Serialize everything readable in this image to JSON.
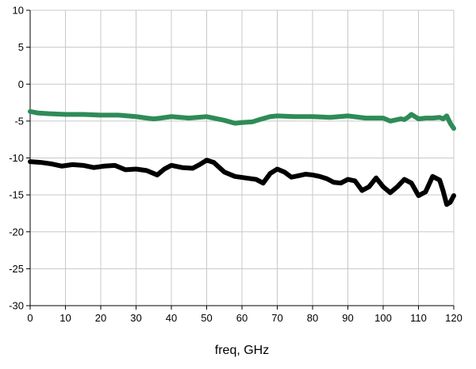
{
  "chart_data": {
    "type": "line",
    "title": "",
    "xlabel": "freq, GHz",
    "ylabel": "",
    "xlim": [
      0,
      120
    ],
    "ylim": [
      -30,
      10
    ],
    "grid": true,
    "x_ticks": [
      "0",
      "10",
      "20",
      "30",
      "40",
      "50",
      "60",
      "70",
      "80",
      "90",
      "100",
      "110",
      "120"
    ],
    "y_ticks": [
      "10",
      "5",
      "0",
      "-5",
      "-10",
      "-15",
      "-20",
      "-25",
      "-30"
    ],
    "series": [
      {
        "name": "green trace",
        "color": "#2e8b57",
        "x": [
          0,
          2,
          5,
          10,
          15,
          20,
          25,
          30,
          33,
          35,
          37,
          40,
          45,
          50,
          55,
          58,
          60,
          63,
          65,
          68,
          70,
          75,
          80,
          85,
          90,
          95,
          100,
          102,
          105,
          106,
          107,
          108,
          109,
          110,
          112,
          114,
          116,
          117,
          118,
          119,
          120
        ],
        "values": [
          -3.7,
          -3.9,
          -4.0,
          -4.1,
          -4.1,
          -4.2,
          -4.2,
          -4.4,
          -4.6,
          -4.7,
          -4.6,
          -4.4,
          -4.6,
          -4.4,
          -4.9,
          -5.3,
          -5.2,
          -5.1,
          -4.8,
          -4.4,
          -4.3,
          -4.4,
          -4.4,
          -4.5,
          -4.3,
          -4.6,
          -4.6,
          -5.0,
          -4.7,
          -4.8,
          -4.5,
          -4.1,
          -4.4,
          -4.7,
          -4.6,
          -4.6,
          -4.5,
          -4.7,
          -4.3,
          -5.3,
          -6.0
        ]
      },
      {
        "name": "black trace",
        "color": "#000000",
        "x": [
          0,
          3,
          6,
          9,
          12,
          15,
          18,
          21,
          24,
          27,
          30,
          33,
          36,
          38,
          40,
          43,
          46,
          48,
          50,
          52,
          55,
          58,
          61,
          64,
          66,
          68,
          70,
          72,
          74,
          76,
          78,
          80,
          82,
          84,
          86,
          88,
          90,
          92,
          94,
          96,
          98,
          100,
          102,
          104,
          106,
          108,
          110,
          112,
          114,
          116,
          117,
          118,
          119,
          120
        ],
        "values": [
          -10.5,
          -10.6,
          -10.8,
          -11.1,
          -10.9,
          -11.0,
          -11.3,
          -11.1,
          -11.0,
          -11.6,
          -11.5,
          -11.7,
          -12.3,
          -11.5,
          -11.0,
          -11.3,
          -11.4,
          -10.9,
          -10.3,
          -10.6,
          -11.9,
          -12.5,
          -12.7,
          -12.9,
          -13.4,
          -12.1,
          -11.5,
          -11.9,
          -12.6,
          -12.4,
          -12.2,
          -12.3,
          -12.5,
          -12.8,
          -13.3,
          -13.4,
          -12.9,
          -13.1,
          -14.4,
          -13.9,
          -12.7,
          -13.9,
          -14.7,
          -13.9,
          -12.9,
          -13.4,
          -15.1,
          -14.6,
          -12.5,
          -13.0,
          -14.5,
          -16.3,
          -16.0,
          -15.1
        ]
      }
    ]
  }
}
